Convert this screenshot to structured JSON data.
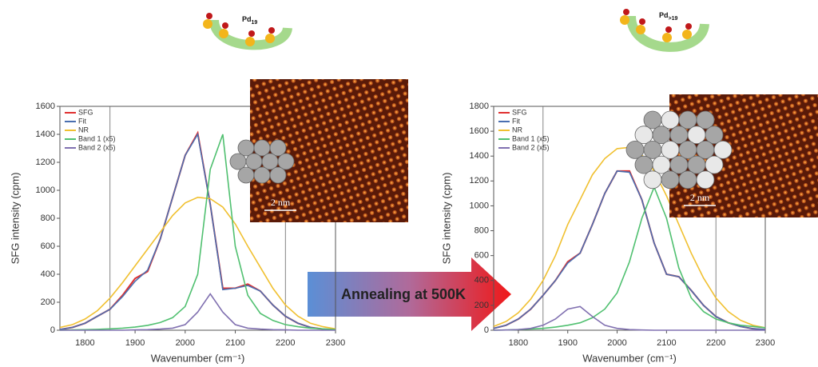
{
  "chart_data": [
    {
      "type": "line",
      "xlabel": "Wavenumber (cm⁻¹)",
      "ylabel": "SFG intensity (cpm)",
      "x": [
        1750,
        1775,
        1800,
        1825,
        1850,
        1875,
        1900,
        1925,
        1950,
        1975,
        2000,
        2025,
        2050,
        2075,
        2100,
        2125,
        2150,
        2175,
        2200,
        2225,
        2250,
        2275,
        2300
      ],
      "xlim": [
        1750,
        2300
      ],
      "xticks": [
        1800,
        1900,
        2000,
        2100,
        2200,
        2300
      ],
      "ylim": [
        0,
        1600
      ],
      "yticks": [
        0,
        200,
        400,
        600,
        800,
        1000,
        1200,
        1400,
        1600
      ],
      "reference_lines": [
        1850,
        2200
      ],
      "series": [
        {
          "name": "SFG",
          "color": "#e03030",
          "values": [
            5,
            20,
            50,
            100,
            150,
            250,
            370,
            420,
            650,
            950,
            1250,
            1410,
            900,
            300,
            300,
            330,
            280,
            180,
            100,
            50,
            20,
            8,
            3
          ]
        },
        {
          "name": "Fit",
          "color": "#4a6fb0",
          "values": [
            5,
            20,
            50,
            100,
            150,
            240,
            350,
            430,
            650,
            950,
            1250,
            1400,
            900,
            290,
            300,
            320,
            280,
            180,
            100,
            50,
            20,
            8,
            3
          ]
        },
        {
          "name": "NR",
          "color": "#f0c030",
          "values": [
            20,
            40,
            80,
            140,
            230,
            340,
            460,
            580,
            700,
            820,
            910,
            950,
            940,
            880,
            760,
            600,
            450,
            300,
            180,
            100,
            50,
            25,
            10
          ]
        },
        {
          "name": "Band 1 (x5)",
          "color": "#50c070",
          "values": [
            0,
            2,
            4,
            6,
            10,
            15,
            22,
            35,
            55,
            90,
            170,
            400,
            1150,
            1400,
            600,
            250,
            120,
            70,
            40,
            25,
            15,
            10,
            5
          ]
        },
        {
          "name": "Band 2 (x5)",
          "color": "#8070b0",
          "values": [
            0,
            0,
            0,
            0,
            0,
            0,
            2,
            4,
            8,
            15,
            40,
            130,
            260,
            130,
            40,
            15,
            8,
            4,
            2,
            0,
            0,
            0,
            0
          ]
        }
      ],
      "cluster_label": {
        "main": "Pd",
        "sub": "19"
      },
      "scale_bar": "2 nm"
    },
    {
      "type": "line",
      "xlabel": "Wavenumber (cm⁻¹)",
      "ylabel": "SFG intensity (cpm)",
      "x": [
        1750,
        1775,
        1800,
        1825,
        1850,
        1875,
        1900,
        1925,
        1950,
        1975,
        2000,
        2025,
        2050,
        2075,
        2100,
        2125,
        2150,
        2175,
        2200,
        2225,
        2250,
        2275,
        2300
      ],
      "xlim": [
        1750,
        2300
      ],
      "xticks": [
        1800,
        1900,
        2000,
        2100,
        2200,
        2300
      ],
      "ylim": [
        0,
        1800
      ],
      "yticks": [
        0,
        200,
        400,
        600,
        800,
        1000,
        1200,
        1400,
        1600,
        1800
      ],
      "reference_lines": [
        1850,
        2200
      ],
      "series": [
        {
          "name": "SFG",
          "color": "#e03030",
          "values": [
            15,
            40,
            90,
            170,
            280,
            400,
            550,
            620,
            850,
            1100,
            1280,
            1280,
            1050,
            700,
            450,
            430,
            320,
            200,
            110,
            60,
            30,
            12,
            5
          ]
        },
        {
          "name": "Fit",
          "color": "#4a6fb0",
          "values": [
            15,
            40,
            90,
            170,
            280,
            400,
            540,
            620,
            850,
            1100,
            1280,
            1270,
            1050,
            700,
            450,
            430,
            320,
            200,
            110,
            60,
            30,
            12,
            5
          ]
        },
        {
          "name": "NR",
          "color": "#f0c030",
          "values": [
            30,
            70,
            140,
            250,
            400,
            600,
            850,
            1050,
            1250,
            1380,
            1460,
            1470,
            1410,
            1280,
            1080,
            850,
            620,
            420,
            260,
            150,
            80,
            40,
            20
          ]
        },
        {
          "name": "Band 1 (x5)",
          "color": "#50c070",
          "values": [
            0,
            2,
            5,
            10,
            15,
            25,
            40,
            60,
            100,
            170,
            300,
            550,
            900,
            1150,
            900,
            500,
            260,
            150,
            90,
            60,
            40,
            30,
            20
          ]
        },
        {
          "name": "Band 2 (x5)",
          "color": "#8070b0",
          "values": [
            0,
            2,
            5,
            15,
            40,
            90,
            170,
            190,
            110,
            40,
            15,
            5,
            2,
            0,
            0,
            0,
            0,
            0,
            0,
            0,
            0,
            0,
            0
          ]
        }
      ],
      "cluster_label": {
        "main": "Pd",
        "sub": ">19"
      },
      "scale_bar": "2 nm"
    }
  ],
  "arrow_text": "Annealing at 500K"
}
